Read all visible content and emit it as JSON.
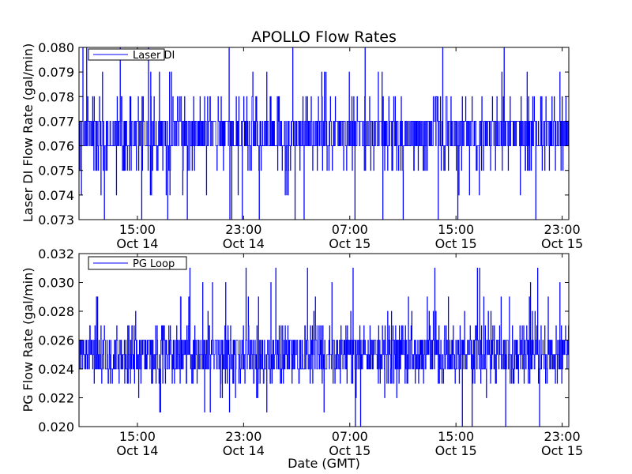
{
  "chart_data": [
    {
      "type": "line",
      "title": "APOLLO Flow Rates",
      "ylabel": "Laser DI Flow Rate (gal/min)",
      "xlabel": "",
      "series": [
        {
          "name": "Laser DI",
          "color": "#0000ff",
          "center": 0.0765,
          "noise_step": 0.001,
          "typical": [
            0.076,
            0.077
          ],
          "occasional": [
            0.075,
            0.078
          ],
          "rare": [
            0.074,
            0.079,
            0.08,
            0.073
          ]
        }
      ],
      "ylim": [
        0.073,
        0.08
      ],
      "yticks": [
        0.073,
        0.074,
        0.075,
        0.076,
        0.077,
        0.078,
        0.079,
        0.08
      ],
      "ytick_labels": [
        "0.073",
        "0.074",
        "0.075",
        "0.076",
        "0.077",
        "0.078",
        "0.079",
        "0.080"
      ],
      "xlim_hours": [
        10.6,
        47.5
      ],
      "xticks_hours": [
        15,
        23,
        31,
        39,
        47
      ],
      "xtick_labels": [
        {
          "time": "15:00",
          "date": "Oct 14"
        },
        {
          "time": "23:00",
          "date": "Oct 14"
        },
        {
          "time": "07:00",
          "date": "Oct 15"
        },
        {
          "time": "15:00",
          "date": "Oct 15"
        },
        {
          "time": "23:00",
          "date": "Oct 15"
        }
      ],
      "legend": "top-left",
      "grid": false
    },
    {
      "type": "line",
      "title": "",
      "ylabel": "PG Flow Rate (gal/min)",
      "xlabel": "Date (GMT)",
      "series": [
        {
          "name": "PG Loop",
          "color": "#0000ff",
          "center": 0.025,
          "noise_step": 0.001,
          "typical": [
            0.024,
            0.025,
            0.026
          ],
          "occasional": [
            0.023,
            0.027
          ],
          "rare": [
            0.022,
            0.028,
            0.029,
            0.021,
            0.03,
            0.02,
            0.031
          ]
        }
      ],
      "ylim": [
        0.02,
        0.032
      ],
      "yticks": [
        0.02,
        0.022,
        0.024,
        0.026,
        0.028,
        0.03,
        0.032
      ],
      "ytick_labels": [
        "0.020",
        "0.022",
        "0.024",
        "0.026",
        "0.028",
        "0.030",
        "0.032"
      ],
      "xlim_hours": [
        10.6,
        47.5
      ],
      "xticks_hours": [
        15,
        23,
        31,
        39,
        47
      ],
      "xtick_labels": [
        {
          "time": "15:00",
          "date": "Oct 14"
        },
        {
          "time": "23:00",
          "date": "Oct 14"
        },
        {
          "time": "07:00",
          "date": "Oct 15"
        },
        {
          "time": "15:00",
          "date": "Oct 15"
        },
        {
          "time": "23:00",
          "date": "Oct 15"
        }
      ],
      "legend": "top-left",
      "grid": false
    }
  ]
}
